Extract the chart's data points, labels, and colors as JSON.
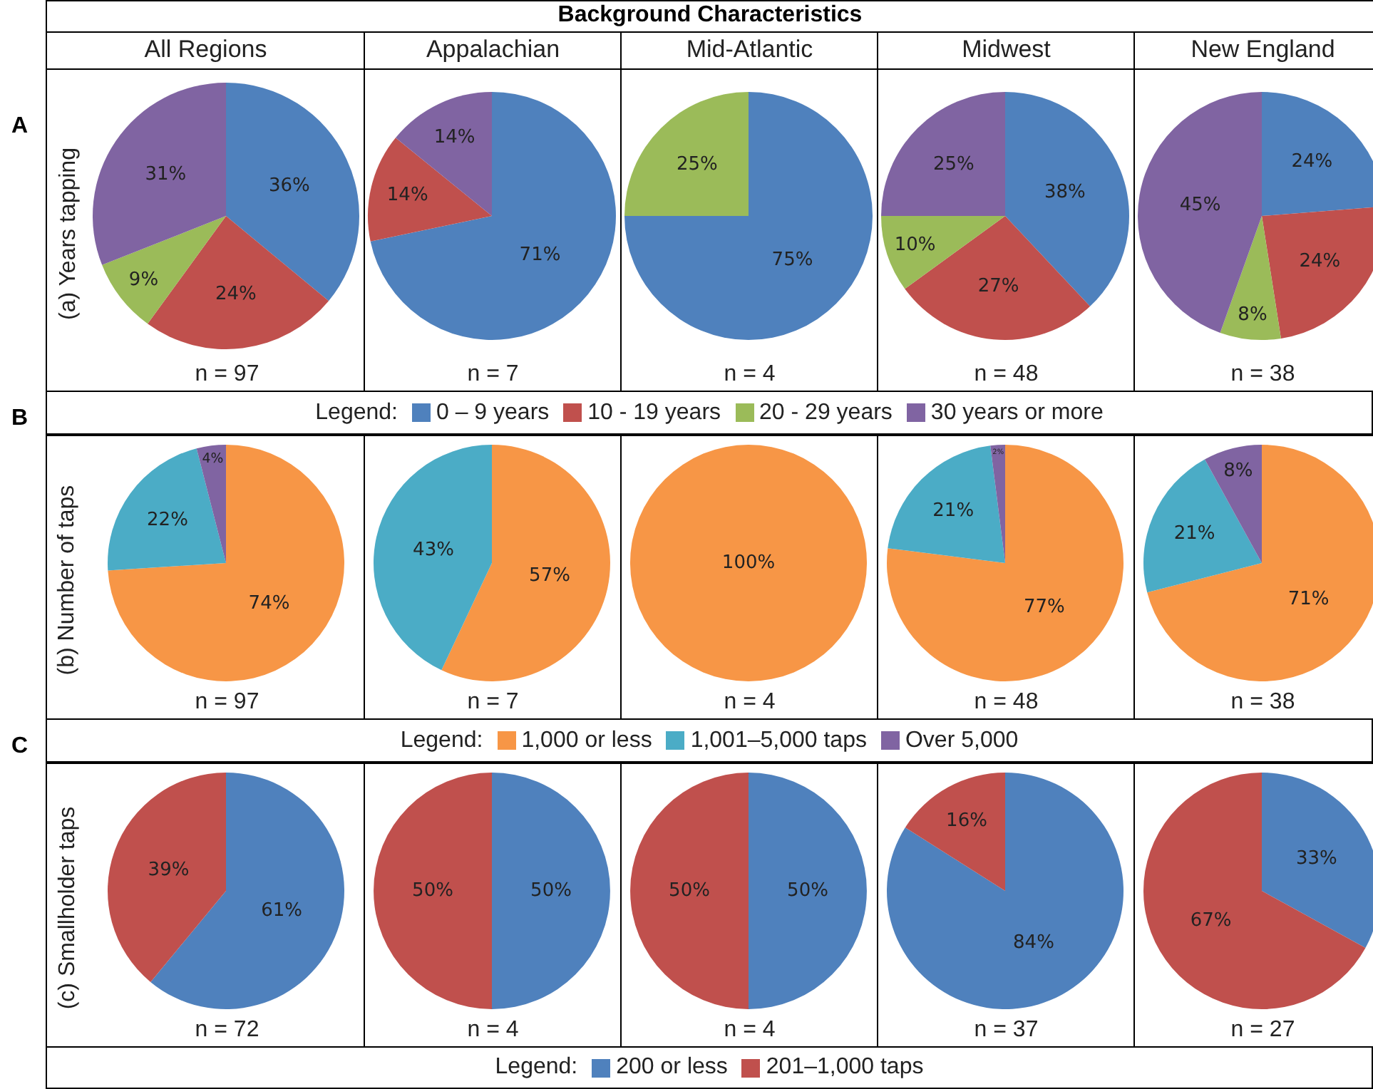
{
  "chart_data": [
    {
      "type": "pie",
      "subtitle": "All Regions",
      "ylabel": "(a) Years tapping",
      "categories": [
        "0 – 9 years",
        "10 - 19 years",
        "20 - 29 years",
        "30 years or more"
      ],
      "values": [
        36,
        24,
        9,
        31
      ],
      "colors": [
        "#4f81bd",
        "#c0504d",
        "#9bbb59",
        "#8064a2"
      ],
      "value_labels": [
        "36%",
        "24%",
        "9%",
        "31%"
      ],
      "annotations": [
        "A",
        "n = 97"
      ],
      "legend": "bottom",
      "legend_title": "Legend:"
    },
    {
      "type": "pie",
      "subtitle": "Appalachian",
      "values": [
        71,
        14,
        0,
        14
      ],
      "colors": [
        "#4f81bd",
        "#c0504d",
        "#9bbb59",
        "#8064a2"
      ],
      "value_labels": [
        "71%",
        "14%",
        null,
        "14%"
      ],
      "annotations": [
        "n = 7"
      ]
    },
    {
      "type": "pie",
      "title": "Background Characteristics",
      "subtitle": "Mid-Atlantic",
      "values": [
        75,
        0,
        25,
        0
      ],
      "colors": [
        "#4f81bd",
        "#c0504d",
        "#9bbb59",
        "#8064a2"
      ],
      "value_labels": [
        "75%",
        null,
        "25%",
        null
      ],
      "annotations": [
        "n = 4"
      ]
    },
    {
      "type": "pie",
      "subtitle": "Midwest",
      "values": [
        38,
        27,
        10,
        25
      ],
      "colors": [
        "#4f81bd",
        "#c0504d",
        "#9bbb59",
        "#8064a2"
      ],
      "value_labels": [
        "38%",
        "27%",
        "10%",
        "25%"
      ],
      "annotations": [
        "n = 48"
      ]
    },
    {
      "type": "pie",
      "subtitle": "New England",
      "values": [
        24,
        24,
        8,
        45
      ],
      "colors": [
        "#4f81bd",
        "#c0504d",
        "#9bbb59",
        "#8064a2"
      ],
      "value_labels": [
        "24%",
        "24%",
        "8%",
        "45%"
      ],
      "annotations": [
        "n = 38"
      ]
    },
    {
      "type": "pie",
      "ylabel": "(b) Number of taps",
      "categories": [
        "1,000 or less",
        "1,001–5,000 taps",
        "Over 5,000"
      ],
      "values": [
        74,
        22,
        4
      ],
      "colors": [
        "#f79646",
        "#4bacc6",
        "#8064a2"
      ],
      "value_labels": [
        "74%",
        "22%",
        "4%"
      ],
      "annotations": [
        "B",
        "n = 97"
      ],
      "legend": "bottom",
      "legend_title": "Legend:"
    },
    {
      "type": "pie",
      "values": [
        57,
        43,
        0
      ],
      "colors": [
        "#f79646",
        "#4bacc6",
        "#8064a2"
      ],
      "value_labels": [
        "57%",
        "43%",
        null
      ],
      "annotations": [
        "n = 7"
      ]
    },
    {
      "type": "pie",
      "values": [
        100,
        0,
        0
      ],
      "colors": [
        "#f79646",
        "#4bacc6",
        "#8064a2"
      ],
      "value_labels": [
        "100%",
        null,
        null
      ],
      "annotations": [
        "n = 4"
      ]
    },
    {
      "type": "pie",
      "values": [
        77,
        21,
        2
      ],
      "colors": [
        "#f79646",
        "#4bacc6",
        "#8064a2"
      ],
      "value_labels": [
        "77%",
        "21%",
        "2%"
      ],
      "annotations": [
        "n = 48"
      ]
    },
    {
      "type": "pie",
      "values": [
        71,
        21,
        8
      ],
      "colors": [
        "#f79646",
        "#4bacc6",
        "#8064a2"
      ],
      "value_labels": [
        "71%",
        "21%",
        "8%"
      ],
      "annotations": [
        "n = 38"
      ]
    },
    {
      "type": "pie",
      "ylabel": "(c) Smallholder taps",
      "categories": [
        "200 or less",
        "201–1,000 taps"
      ],
      "values": [
        61,
        39
      ],
      "colors": [
        "#4f81bd",
        "#c0504d"
      ],
      "value_labels": [
        "61%",
        "39%"
      ],
      "annotations": [
        "C",
        "n = 72"
      ],
      "legend": "bottom",
      "legend_title": "Legend:"
    },
    {
      "type": "pie",
      "values": [
        50,
        50
      ],
      "colors": [
        "#4f81bd",
        "#c0504d"
      ],
      "value_labels": [
        "50%",
        "50%"
      ],
      "annotations": [
        "n = 4"
      ]
    },
    {
      "type": "pie",
      "values": [
        50,
        50
      ],
      "colors": [
        "#4f81bd",
        "#c0504d"
      ],
      "value_labels": [
        "50%",
        "50%"
      ],
      "annotations": [
        "n = 4"
      ]
    },
    {
      "type": "pie",
      "values": [
        84,
        16
      ],
      "colors": [
        "#4f81bd",
        "#c0504d"
      ],
      "value_labels": [
        "84%",
        "16%"
      ],
      "annotations": [
        "n = 37"
      ]
    },
    {
      "type": "pie",
      "values": [
        33,
        67
      ],
      "colors": [
        "#4f81bd",
        "#c0504d"
      ],
      "value_labels": [
        "33%",
        "67%"
      ],
      "annotations": [
        "n = 27"
      ]
    }
  ]
}
